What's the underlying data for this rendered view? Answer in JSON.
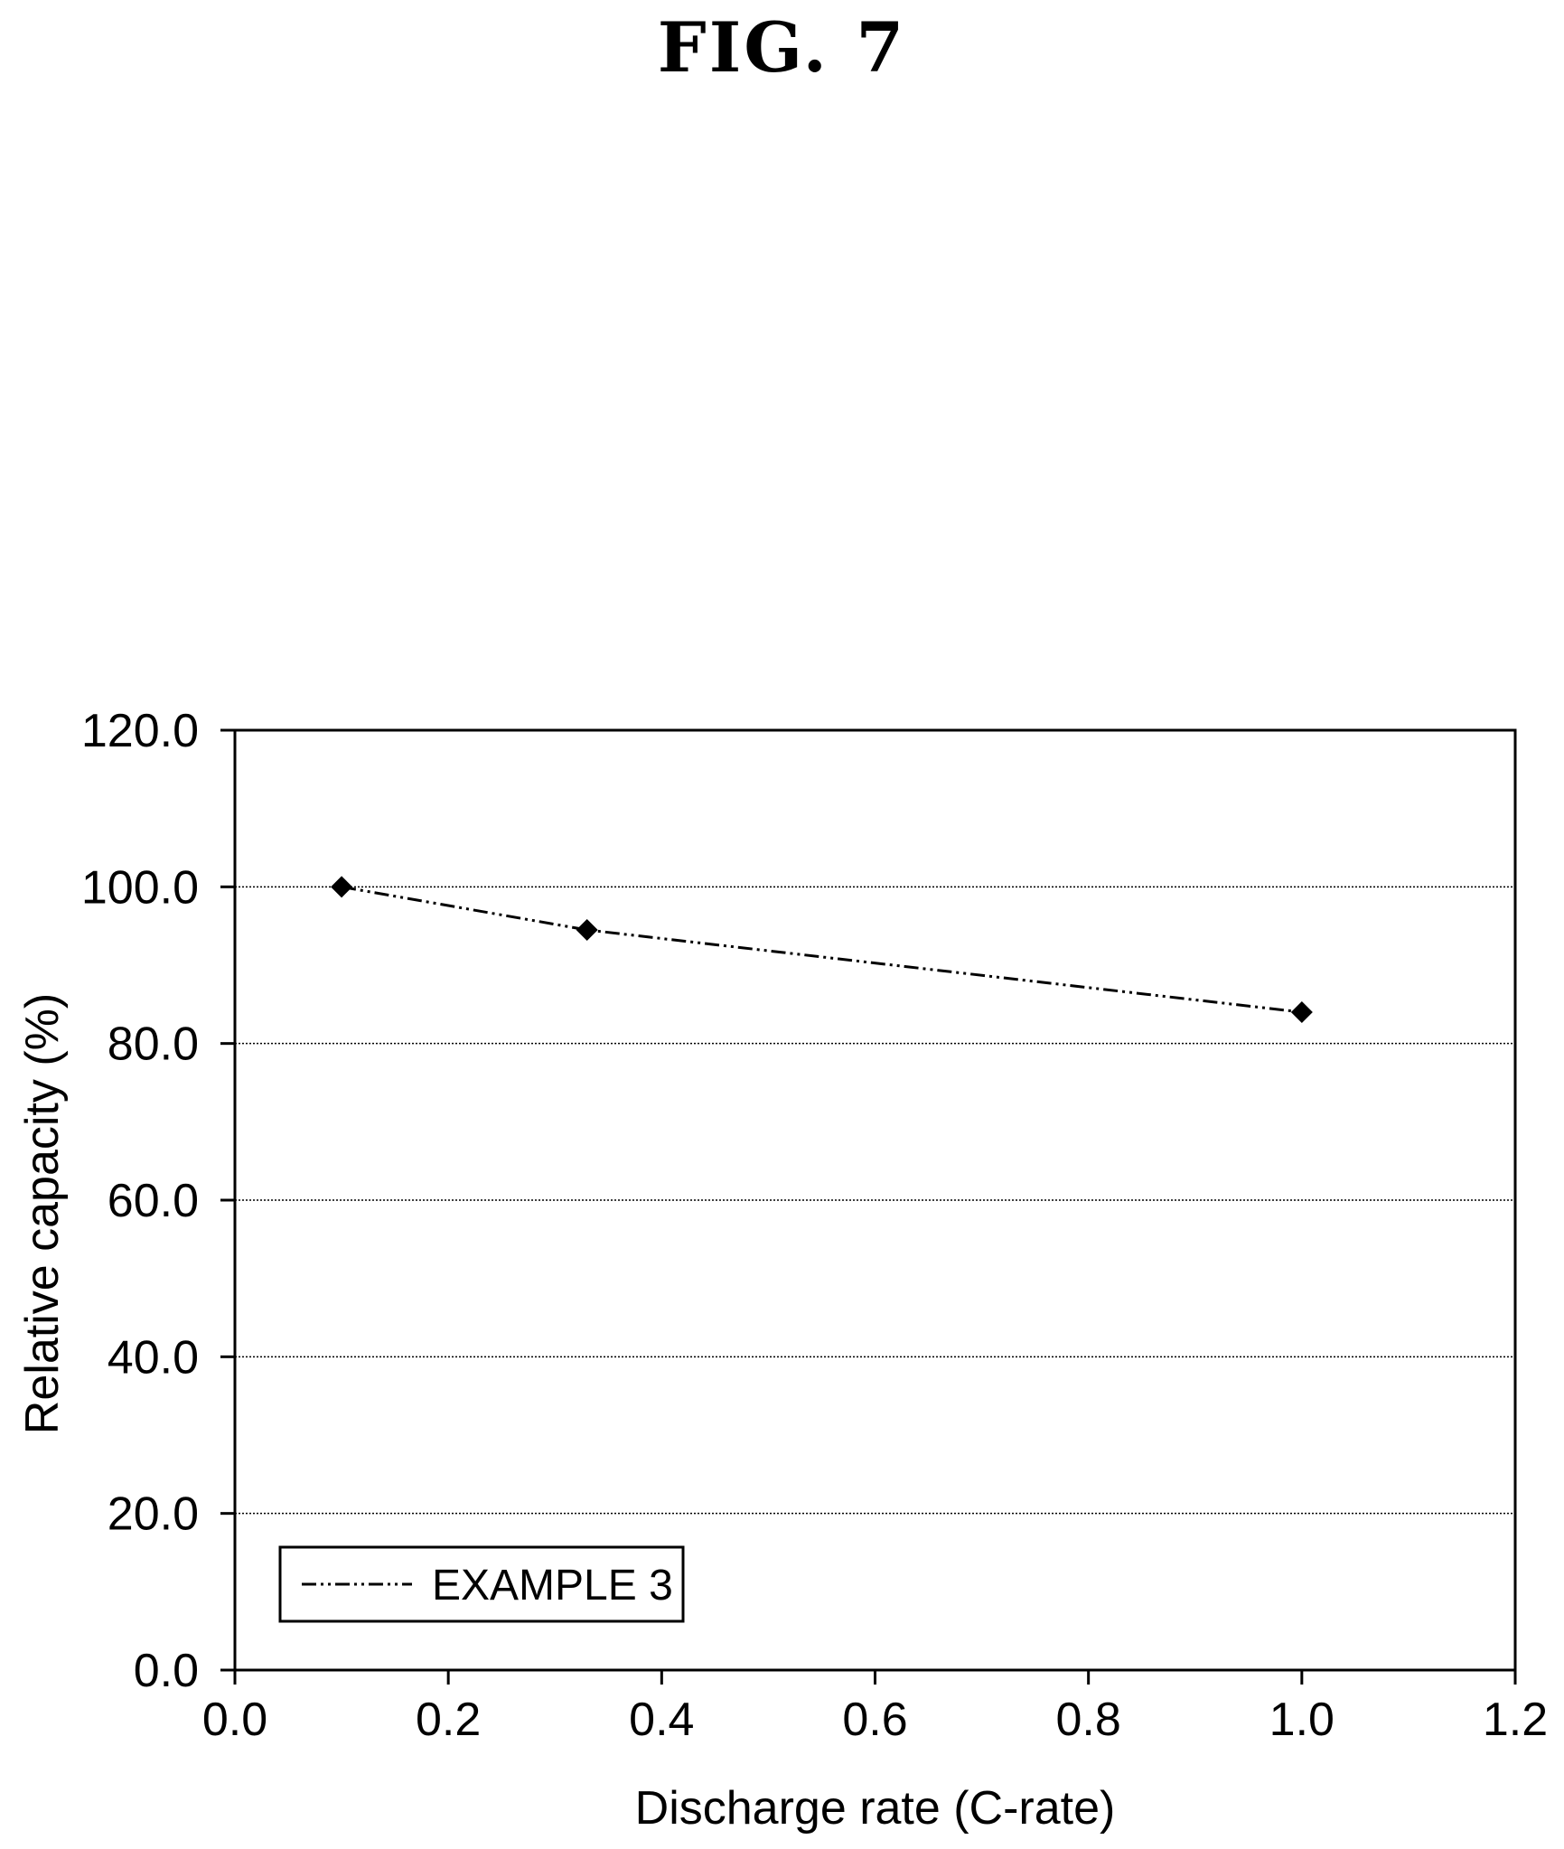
{
  "figure": {
    "label": "FIG. 7"
  },
  "chart_data": {
    "type": "line",
    "title": "",
    "xlabel": "Discharge rate (C-rate)",
    "ylabel": "Relative capacity (%)",
    "xlim": [
      0.0,
      1.2
    ],
    "ylim": [
      0.0,
      120.0
    ],
    "x_ticks": [
      "0.0",
      "0.2",
      "0.4",
      "0.6",
      "0.8",
      "1.0",
      "1.2"
    ],
    "y_ticks": [
      "0.0",
      "20.0",
      "40.0",
      "60.0",
      "80.0",
      "100.0",
      "120.0"
    ],
    "grid": "horizontal dotted",
    "legend_position": "bottom-left",
    "series": [
      {
        "name": "EXAMPLE 3",
        "marker": "diamond",
        "line_style": "dash-dot-dot",
        "color": "#000000",
        "x": [
          0.1,
          0.33,
          1.0
        ],
        "y": [
          100.0,
          94.5,
          84.0
        ]
      }
    ]
  }
}
